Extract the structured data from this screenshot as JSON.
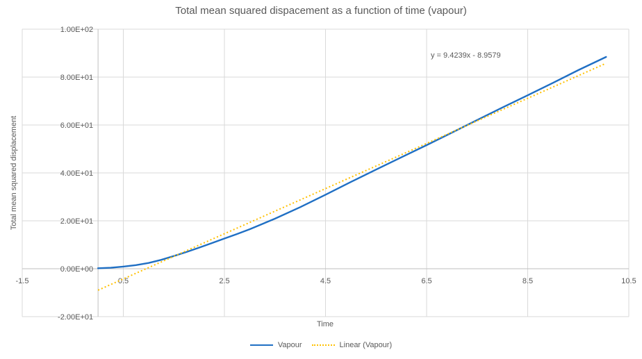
{
  "chart_data": {
    "type": "line",
    "title": "Total mean squared dispacement as a function of time (vapour)",
    "xlabel": "Time",
    "ylabel": "Total mean squared displacement",
    "xlim": [
      -1.5,
      10.5
    ],
    "ylim": [
      -20,
      100
    ],
    "grid": true,
    "legend_position": "bottom",
    "x_ticks": {
      "values": [
        -1.5,
        0.5,
        2.5,
        4.5,
        6.5,
        8.5,
        10.5
      ],
      "labels": [
        "-1.5",
        "0.5",
        "2.5",
        "4.5",
        "6.5",
        "8.5",
        "10.5"
      ]
    },
    "y_ticks": {
      "values": [
        -20,
        0,
        20,
        40,
        60,
        80,
        100
      ],
      "labels": [
        "-2.00E+01",
        "0.00E+00",
        "2.00E+01",
        "4.00E+01",
        "6.00E+01",
        "8.00E+01",
        "1.00E+02"
      ]
    },
    "colors": {
      "grid": "#D9D9D9",
      "axis": "#BFBFBF",
      "text": "#595959"
    },
    "series": [
      {
        "name": "Vapour",
        "type": "line",
        "style": "solid",
        "color": "#1F6FC4",
        "points": [
          [
            0,
            0.2
          ],
          [
            0.25,
            0.4
          ],
          [
            0.5,
            0.9
          ],
          [
            0.75,
            1.5
          ],
          [
            1,
            2.4
          ],
          [
            1.25,
            3.7
          ],
          [
            1.5,
            5.3
          ],
          [
            1.75,
            7.0
          ],
          [
            2,
            8.8
          ],
          [
            2.25,
            10.7
          ],
          [
            2.5,
            12.6
          ],
          [
            2.75,
            14.5
          ],
          [
            3,
            16.5
          ],
          [
            3.5,
            20.9
          ],
          [
            4,
            25.7
          ],
          [
            4.5,
            30.9
          ],
          [
            5,
            36.2
          ],
          [
            5.5,
            41.4
          ],
          [
            6,
            46.5
          ],
          [
            6.5,
            51.6
          ],
          [
            7,
            56.8
          ],
          [
            7.5,
            62.1
          ],
          [
            8,
            67.3
          ],
          [
            8.5,
            72.4
          ],
          [
            9,
            77.6
          ],
          [
            9.5,
            82.9
          ],
          [
            10.05,
            88.4
          ]
        ]
      },
      {
        "name": "Linear (Vapour)",
        "type": "trendline",
        "style": "dotted",
        "color": "#FFC000",
        "slope": 9.4239,
        "intercept": -8.9579,
        "x_range": [
          0,
          10.05
        ],
        "equation": "y = 9.4239x - 8.9579"
      }
    ]
  }
}
